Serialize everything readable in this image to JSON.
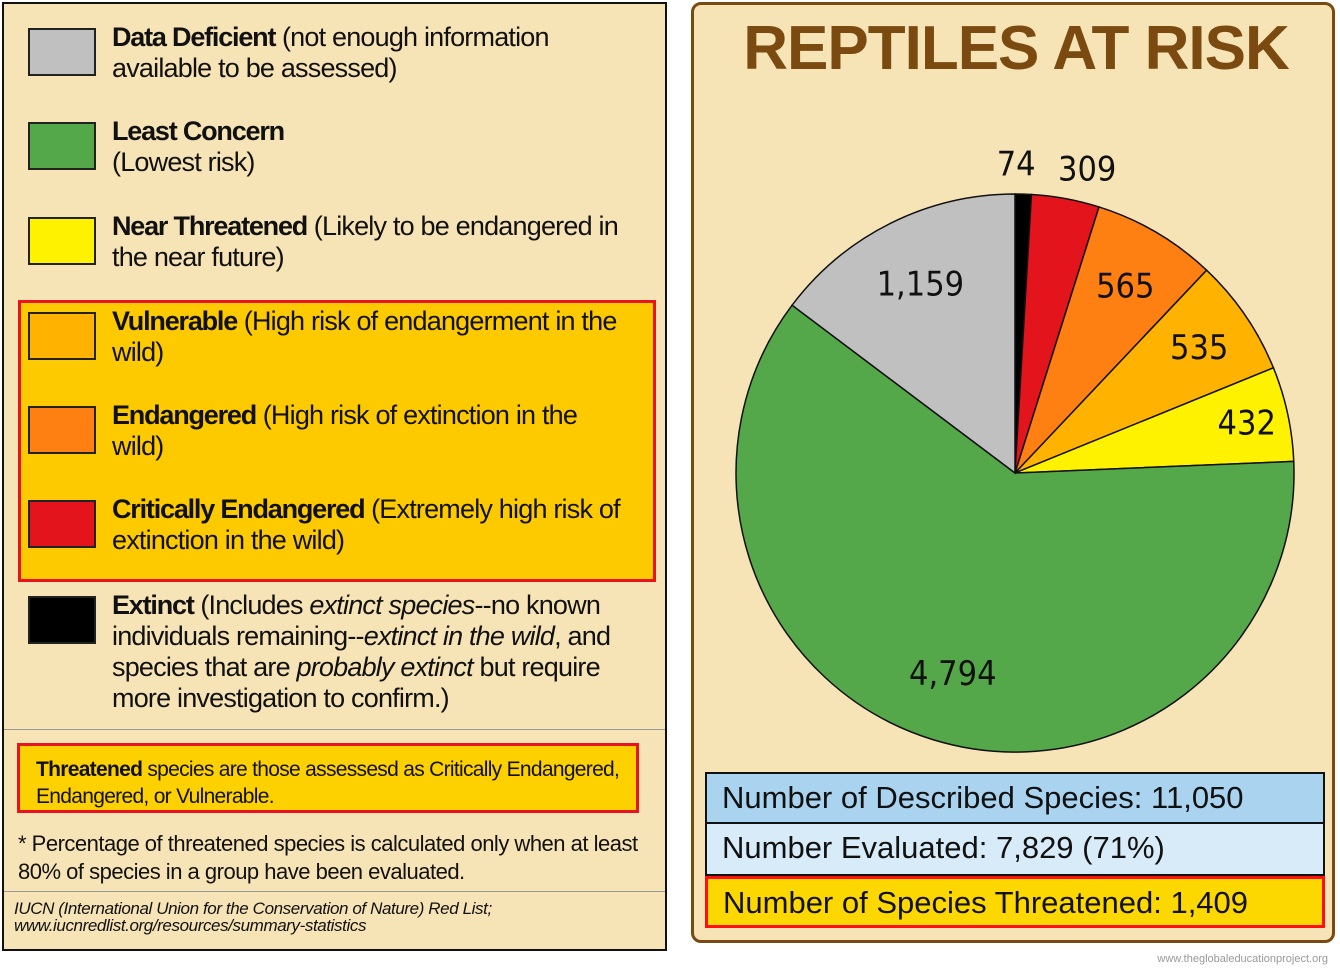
{
  "legend": {
    "items": [
      {
        "key": "data_deficient",
        "label": "Data Deficient",
        "desc": "(not enough information available to be assessed)",
        "color": "#c0c0c0"
      },
      {
        "key": "least_concern",
        "label": "Least Concern",
        "desc": "(Lowest risk)",
        "color": "#55a84a"
      },
      {
        "key": "near_threatened",
        "label": "Near Threatened",
        "desc": "(Likely to be endangered in the near future)",
        "color": "#fff200"
      },
      {
        "key": "vulnerable",
        "label": "Vulnerable",
        "desc": "(High risk of endangerment in the wild)",
        "color": "#ffb200"
      },
      {
        "key": "endangered",
        "label": "Endangered",
        "desc": "(High risk of extinction in the wild)",
        "color": "#ff8012"
      },
      {
        "key": "critically_endangered",
        "label": "Critically Endangered",
        "desc": "(Extremely high risk of extinction in the wild)",
        "color": "#e3141c"
      }
    ],
    "extinct": {
      "label": "Extinct",
      "color": "#000000",
      "t1": "(Includes ",
      "i1": "extinct species",
      "t2": "--no known individuals remaining--",
      "i2": "extinct in the wild",
      "t3": ", and species that are ",
      "i3": "probably extinct",
      "t4": " but require more investigation to confirm.)"
    },
    "threatened_note": {
      "bold": "Threatened",
      "text": " species are those assessesd as Critically Endangered, Endangered, or Vulnerable."
    },
    "percentage_note": "* Percentage of threatened species is calculated only when at least 80% of species in a group have been evaluated.",
    "source_line1": "IUCN (International Union for the Conservation of Nature) Red List;",
    "source_line2": "www.iucnredlist.org/resources/summary-statistics"
  },
  "chart_data": {
    "type": "pie",
    "title": "REPTILES AT RISK",
    "start": "top, clockwise",
    "slices": [
      {
        "category": "Extinct",
        "value": 74,
        "label": "74",
        "color": "#000000"
      },
      {
        "category": "Critically Endangered",
        "value": 309,
        "label": "309",
        "color": "#e3141c"
      },
      {
        "category": "Endangered",
        "value": 565,
        "label": "565",
        "color": "#ff8012"
      },
      {
        "category": "Vulnerable",
        "value": 535,
        "label": "535",
        "color": "#ffb200"
      },
      {
        "category": "Near Threatened",
        "value": 432,
        "label": "432",
        "color": "#fff200"
      },
      {
        "category": "Least Concern",
        "value": 4794,
        "label": "4,794",
        "color": "#55a84a"
      },
      {
        "category": "Data Deficient",
        "value": 1159,
        "label": "1,159",
        "color": "#c0c0c0"
      }
    ]
  },
  "stats": {
    "described": "Number of Described Species: 11,050",
    "evaluated": "Number Evaluated: 7,829 (71%)",
    "threatened": "Number of Species Threatened: 1,409"
  },
  "watermark": "www.theglobaleducationproject.org"
}
